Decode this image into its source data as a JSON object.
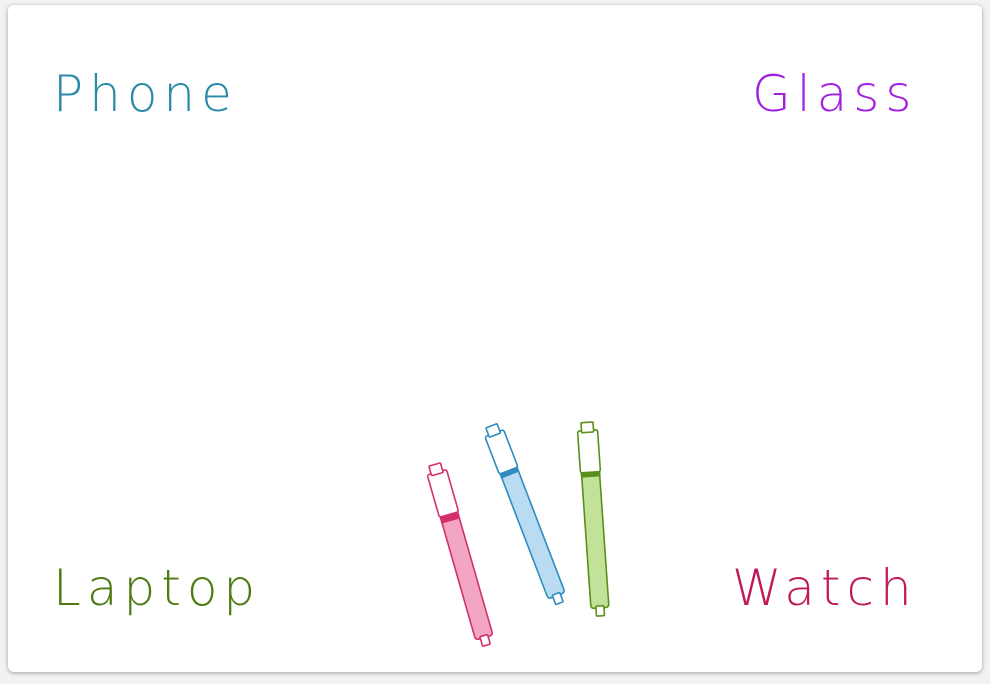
{
  "words": {
    "top_left": {
      "text": "Phone",
      "color": "#2a8aa8"
    },
    "top_right": {
      "text": "Glass",
      "color": "#a020e0"
    },
    "bottom_left": {
      "text": "Laptop",
      "color": "#4e7a12"
    },
    "bottom_right": {
      "text": "Watch",
      "color": "#c0185a"
    }
  },
  "markers": [
    {
      "name": "pink-marker",
      "fill": "#f2a6c4",
      "stroke": "#d3306e"
    },
    {
      "name": "blue-marker",
      "fill": "#b9dcf2",
      "stroke": "#2e8cc0"
    },
    {
      "name": "green-marker",
      "fill": "#c2e29a",
      "stroke": "#5a8f1a"
    }
  ]
}
